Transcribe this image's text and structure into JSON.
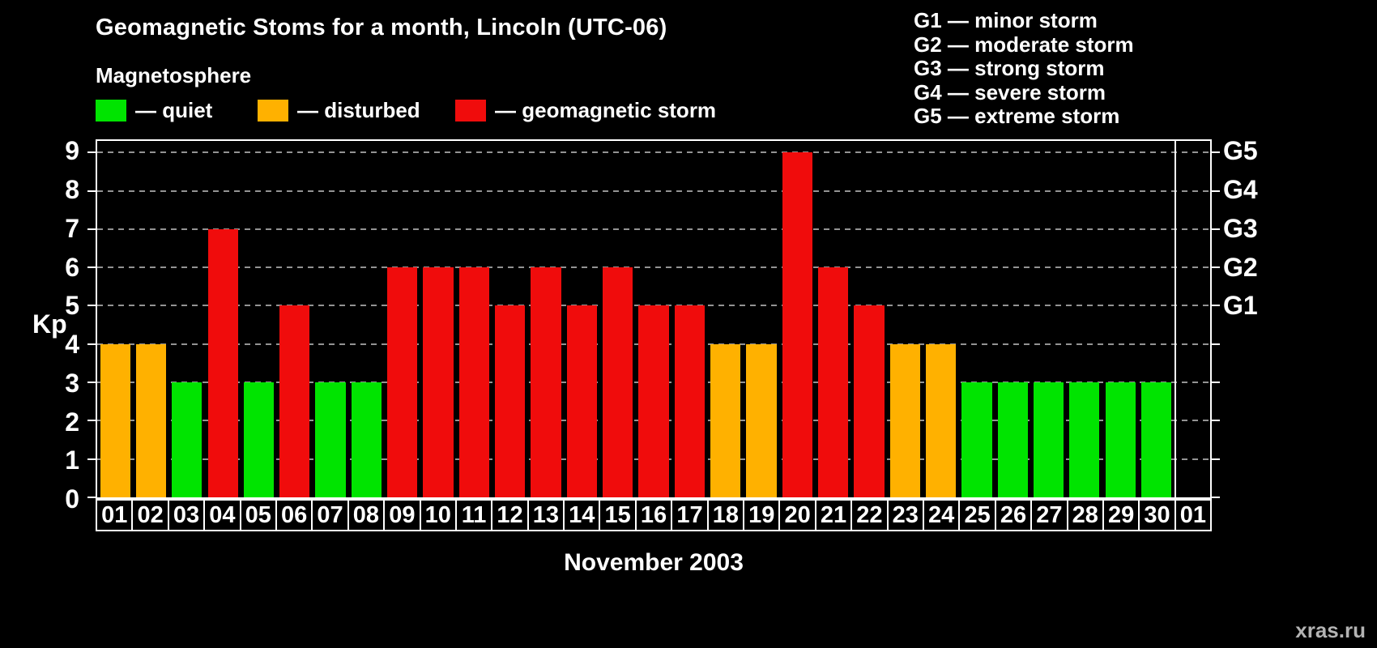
{
  "title": "Geomagnetic Stoms for a month, Lincoln (UTC-06)",
  "legend": {
    "heading": "Magnetosphere",
    "items": [
      {
        "label": "— quiet",
        "key": "quiet",
        "color": "#00e400"
      },
      {
        "label": "— disturbed",
        "key": "disturbed",
        "color": "#ffb100"
      },
      {
        "label": "— geomagnetic storm",
        "key": "storm",
        "color": "#f00c0c"
      }
    ]
  },
  "g_legend": [
    "G1 — minor storm",
    "G2 — moderate storm",
    "G3 — strong storm",
    "G4 — severe storm",
    "G5 — extreme storm"
  ],
  "axis": {
    "kp_label": "Kp",
    "x_label": "November 2003"
  },
  "watermark": "xras.ru",
  "chart_data": {
    "type": "bar",
    "title": "Geomagnetic Stoms for a month, Lincoln (UTC-06)",
    "xlabel": "November 2003",
    "ylabel": "Kp",
    "ylim": [
      0,
      9
    ],
    "plot_max": 9.3,
    "grid": "horizontal-dashed",
    "categories": [
      "01",
      "02",
      "03",
      "04",
      "05",
      "06",
      "07",
      "08",
      "09",
      "10",
      "11",
      "12",
      "13",
      "14",
      "15",
      "16",
      "17",
      "18",
      "19",
      "20",
      "21",
      "22",
      "23",
      "24",
      "25",
      "26",
      "27",
      "28",
      "29",
      "30",
      "01"
    ],
    "values": [
      4,
      4,
      3,
      7,
      3,
      5,
      3,
      3,
      6,
      6,
      6,
      5,
      6,
      5,
      6,
      5,
      5,
      4,
      4,
      9,
      6,
      5,
      4,
      4,
      3,
      3,
      3,
      3,
      3,
      3,
      null
    ],
    "statuses": [
      "disturbed",
      "disturbed",
      "quiet",
      "storm",
      "quiet",
      "storm",
      "quiet",
      "quiet",
      "storm",
      "storm",
      "storm",
      "storm",
      "storm",
      "storm",
      "storm",
      "storm",
      "storm",
      "disturbed",
      "disturbed",
      "storm",
      "storm",
      "storm",
      "disturbed",
      "disturbed",
      "quiet",
      "quiet",
      "quiet",
      "quiet",
      "quiet",
      "quiet",
      null
    ],
    "colors": {
      "quiet": "#00e400",
      "disturbed": "#ffb100",
      "storm": "#f00c0c"
    },
    "right_ticks": [
      {
        "label": "G5",
        "value": 9
      },
      {
        "label": "G4",
        "value": 8
      },
      {
        "label": "G3",
        "value": 7
      },
      {
        "label": "G2",
        "value": 6
      },
      {
        "label": "G1",
        "value": 5
      }
    ],
    "legend_position": "top"
  }
}
